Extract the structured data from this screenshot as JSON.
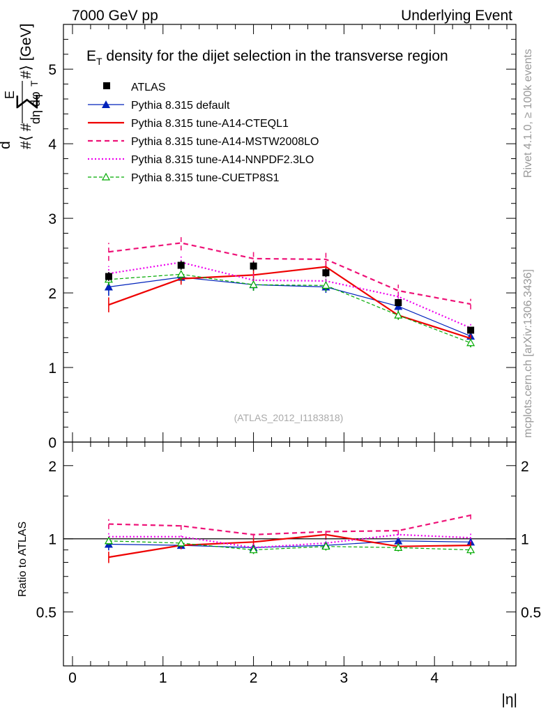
{
  "header": {
    "left": "7000 GeV pp",
    "right": "Underlying Event"
  },
  "side_labels": {
    "rivet": "Rivet 4.1.0, ≥ 100k events",
    "mcplots": "mcplots.cern.ch [arXiv:1306.3436]"
  },
  "watermark": "(ATLAS_2012_I1183818)",
  "chart_data": {
    "type": "line",
    "title": "E_T density  for the dijet selection in the transverse region",
    "title_main": "E",
    "title_sub": "T",
    "title_rest": " density  for the dijet selection in the transverse region",
    "xlabel": "|η|",
    "ylabel": "d⟨∑E_T⟩/dη dφ [GeV]",
    "ylabel_parts": {
      "open": "#⟨ #",
      "d_top": "d",
      "sum": "∑",
      "e": "E",
      "t": "T",
      "close": "#⟩ [GeV]",
      "denom": "dη dφ"
    },
    "ratio_ylabel": "Ratio to ATLAS",
    "xlim": [
      -0.1,
      4.9
    ],
    "ylim": [
      0,
      5.6
    ],
    "ratio_ylim": [
      0.3,
      2.5
    ],
    "x_ticks": [
      "0",
      "1",
      "2",
      "3",
      "4"
    ],
    "x_tick_values": [
      0,
      1,
      2,
      3,
      4
    ],
    "y_ticks": [
      "0",
      "1",
      "2",
      "3",
      "4",
      "5"
    ],
    "y_tick_values": [
      0,
      1,
      2,
      3,
      4,
      5
    ],
    "ratio_ticks": [
      "0.5",
      "1",
      "2"
    ],
    "ratio_tick_values": [
      0.5,
      1,
      2
    ],
    "legend": [
      {
        "name": "ATLAS",
        "style": "data"
      },
      {
        "name": "Pythia 8.315 default",
        "style": "blue"
      },
      {
        "name": "Pythia 8.315 tune-A14-CTEQL1",
        "style": "red"
      },
      {
        "name": "Pythia 8.315 tune-A14-MSTW2008LO",
        "style": "magenta-dash"
      },
      {
        "name": "Pythia 8.315 tune-A14-NNPDF2.3LO",
        "style": "magenta-dot"
      },
      {
        "name": "Pythia 8.315 tune-CUETP8S1",
        "style": "green"
      }
    ],
    "x": [
      0.4,
      1.2,
      2.0,
      2.8,
      3.6,
      4.4
    ],
    "atlas": {
      "values": [
        2.22,
        2.37,
        2.36,
        2.27,
        1.87,
        1.5
      ],
      "errors": [
        0.06,
        0.06,
        0.06,
        0.06,
        0.05,
        0.04
      ]
    },
    "series": [
      {
        "name": "Pythia 8.315 default",
        "color": "#0022bb",
        "dash": "",
        "width": 1.2,
        "marker": "filled-triangle",
        "values": [
          2.08,
          2.21,
          2.11,
          2.08,
          1.82,
          1.42
        ],
        "errors": [
          0.12,
          0.08,
          0.08,
          0.08,
          0.06,
          0.05
        ],
        "ratio": [
          0.95,
          0.94,
          0.92,
          0.94,
          0.98,
          0.97
        ]
      },
      {
        "name": "Pythia 8.315 tune-A14-CTEQL1",
        "color": "#ee0000",
        "dash": "",
        "width": 2.2,
        "marker": "none",
        "values": [
          1.84,
          2.19,
          2.24,
          2.35,
          1.7,
          1.39
        ],
        "errors": [
          0.1,
          0.08,
          0.08,
          0.08,
          0.06,
          0.05
        ],
        "ratio": [
          0.84,
          0.94,
          0.97,
          1.04,
          0.93,
          0.94
        ]
      },
      {
        "name": "Pythia 8.315 tune-A14-MSTW2008LO",
        "color": "#ee1177",
        "dash": "7,5",
        "width": 2.2,
        "marker": "none",
        "values": [
          2.55,
          2.67,
          2.46,
          2.45,
          2.03,
          1.85
        ],
        "errors": [
          0.12,
          0.1,
          0.09,
          0.09,
          0.08,
          0.07
        ],
        "ratio": [
          1.15,
          1.13,
          1.04,
          1.07,
          1.08,
          1.25
        ]
      },
      {
        "name": "Pythia 8.315 tune-A14-NNPDF2.3LO",
        "color": "#ee00ee",
        "dash": "2,3",
        "width": 2.2,
        "marker": "none",
        "values": [
          2.26,
          2.41,
          2.17,
          2.16,
          1.95,
          1.53
        ],
        "errors": [
          0.1,
          0.08,
          0.08,
          0.08,
          0.07,
          0.06
        ],
        "ratio": [
          1.02,
          1.02,
          0.92,
          0.96,
          1.04,
          1.01
        ]
      },
      {
        "name": "Pythia 8.315 tune-CUETP8S1",
        "color": "#00aa00",
        "dash": "5,3",
        "width": 1.2,
        "marker": "open-triangle",
        "values": [
          2.18,
          2.25,
          2.11,
          2.1,
          1.7,
          1.33
        ],
        "errors": [
          0.08,
          0.08,
          0.08,
          0.08,
          0.06,
          0.06
        ],
        "ratio": [
          0.98,
          0.96,
          0.9,
          0.93,
          0.92,
          0.9
        ]
      }
    ]
  }
}
